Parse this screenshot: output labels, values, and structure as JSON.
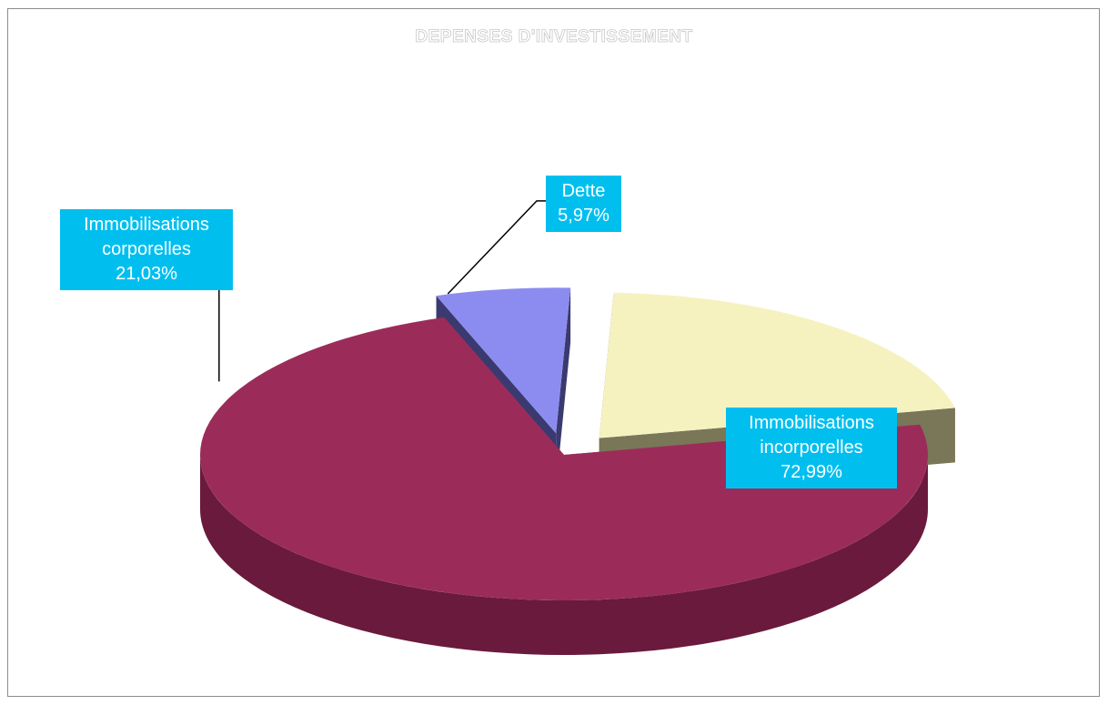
{
  "chart_data": {
    "type": "pie",
    "title": "DEPENSES D'INVESTISSEMENT",
    "categories": [
      "Immobilisations incorporelles",
      "Dette",
      "Immobilisations corporelles"
    ],
    "values": [
      72.99,
      5.97,
      21.03
    ],
    "value_labels": [
      "72,99%",
      "5,97%",
      "21,03%"
    ],
    "label_lines": [
      [
        "Immobilisations",
        "incorporelles"
      ],
      [
        "Dette"
      ],
      [
        "Immobilisations",
        "corporelles"
      ]
    ],
    "colors": [
      "#9b2c5a",
      "#8c8cf0",
      "#f5f2c0"
    ],
    "side_colors": [
      "#6a1a3c",
      "#3a3a70",
      "#7a7658"
    ],
    "label_background": "#00bfef",
    "style": "3d-exploded",
    "legend": "none",
    "grid": false
  }
}
